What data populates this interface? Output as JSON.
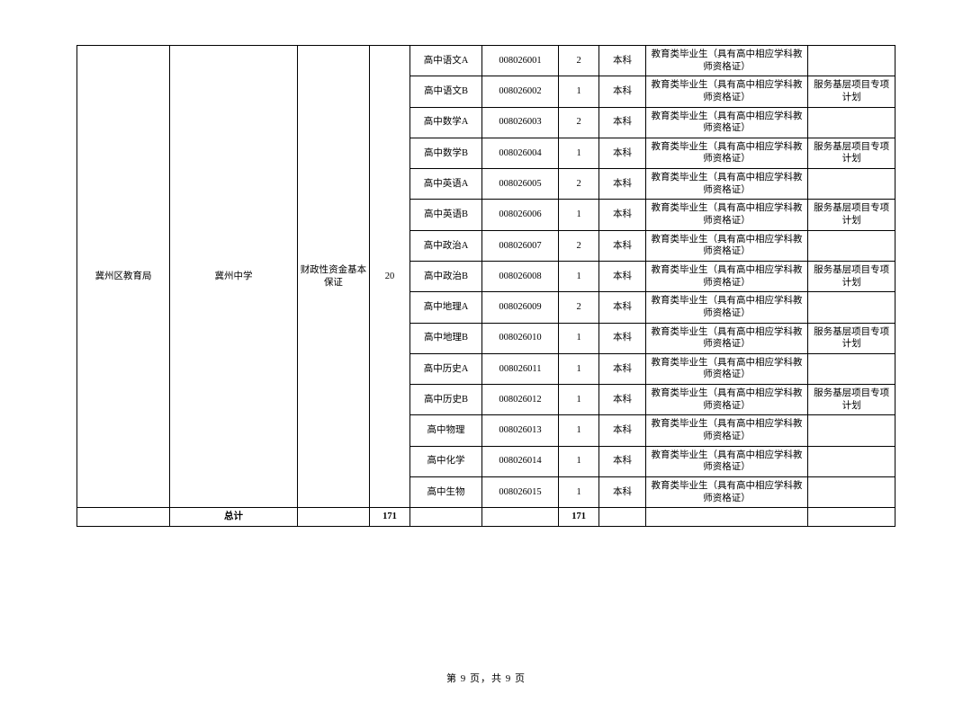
{
  "dept": "冀州区教育局",
  "school": "冀州中学",
  "fund": "财政性资金基本保证",
  "total_positions": "20",
  "rows": [
    {
      "subject": "高中语文A",
      "code": "008026001",
      "count": "2",
      "degree": "本科",
      "req": "教育类毕业生（具有高中相应学科教师资格证）",
      "remark": ""
    },
    {
      "subject": "高中语文B",
      "code": "008026002",
      "count": "1",
      "degree": "本科",
      "req": "教育类毕业生（具有高中相应学科教师资格证）",
      "remark": "服务基层项目专项计划"
    },
    {
      "subject": "高中数学A",
      "code": "008026003",
      "count": "2",
      "degree": "本科",
      "req": "教育类毕业生（具有高中相应学科教师资格证）",
      "remark": ""
    },
    {
      "subject": "高中数学B",
      "code": "008026004",
      "count": "1",
      "degree": "本科",
      "req": "教育类毕业生（具有高中相应学科教师资格证）",
      "remark": "服务基层项目专项计划"
    },
    {
      "subject": "高中英语A",
      "code": "008026005",
      "count": "2",
      "degree": "本科",
      "req": "教育类毕业生（具有高中相应学科教师资格证）",
      "remark": ""
    },
    {
      "subject": "高中英语B",
      "code": "008026006",
      "count": "1",
      "degree": "本科",
      "req": "教育类毕业生（具有高中相应学科教师资格证）",
      "remark": "服务基层项目专项计划"
    },
    {
      "subject": "高中政治A",
      "code": "008026007",
      "count": "2",
      "degree": "本科",
      "req": "教育类毕业生（具有高中相应学科教师资格证）",
      "remark": ""
    },
    {
      "subject": "高中政治B",
      "code": "008026008",
      "count": "1",
      "degree": "本科",
      "req": "教育类毕业生（具有高中相应学科教师资格证）",
      "remark": "服务基层项目专项计划"
    },
    {
      "subject": "高中地理A",
      "code": "008026009",
      "count": "2",
      "degree": "本科",
      "req": "教育类毕业生（具有高中相应学科教师资格证）",
      "remark": ""
    },
    {
      "subject": "高中地理B",
      "code": "008026010",
      "count": "1",
      "degree": "本科",
      "req": "教育类毕业生（具有高中相应学科教师资格证）",
      "remark": "服务基层项目专项计划"
    },
    {
      "subject": "高中历史A",
      "code": "008026011",
      "count": "1",
      "degree": "本科",
      "req": "教育类毕业生（具有高中相应学科教师资格证）",
      "remark": ""
    },
    {
      "subject": "高中历史B",
      "code": "008026012",
      "count": "1",
      "degree": "本科",
      "req": "教育类毕业生（具有高中相应学科教师资格证）",
      "remark": "服务基层项目专项计划"
    },
    {
      "subject": "高中物理",
      "code": "008026013",
      "count": "1",
      "degree": "本科",
      "req": "教育类毕业生（具有高中相应学科教师资格证）",
      "remark": ""
    },
    {
      "subject": "高中化学",
      "code": "008026014",
      "count": "1",
      "degree": "本科",
      "req": "教育类毕业生（具有高中相应学科教师资格证）",
      "remark": ""
    },
    {
      "subject": "高中生物",
      "code": "008026015",
      "count": "1",
      "degree": "本科",
      "req": "教育类毕业生（具有高中相应学科教师资格证）",
      "remark": ""
    }
  ],
  "summary_label": "总计",
  "summary_total": "171",
  "summary_count": "171",
  "page_text": "第 9 页，共 9 页"
}
